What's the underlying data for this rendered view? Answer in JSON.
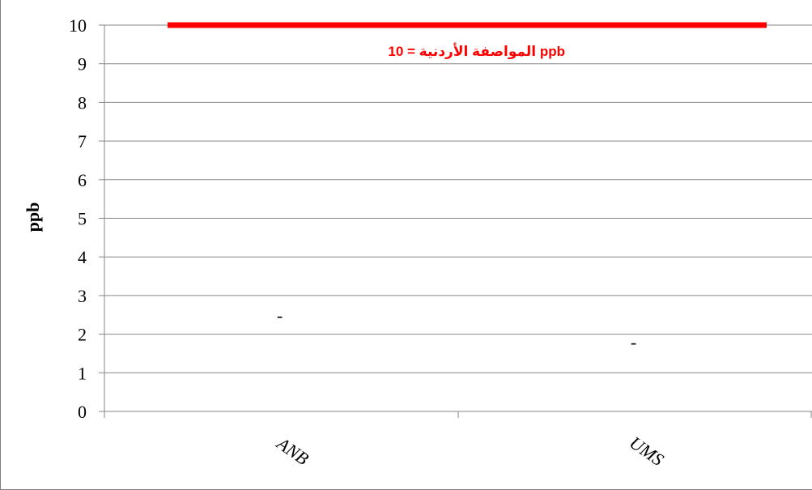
{
  "chart_data": {
    "type": "scatter",
    "title": "",
    "xlabel": "",
    "ylabel": "ppb",
    "ylim": [
      0,
      10
    ],
    "yticks": [
      0,
      1,
      2,
      3,
      4,
      5,
      6,
      7,
      8,
      9,
      10
    ],
    "categories": [
      "ANB",
      "UMS"
    ],
    "series": [
      {
        "values": [
          2.5,
          1.8
        ],
        "marker": "-"
      }
    ],
    "reference_line": {
      "value": 10,
      "label": "المواصفة الأردنية = 10 ppb",
      "color": "#ff0000"
    },
    "grid": true,
    "legend": "none"
  }
}
